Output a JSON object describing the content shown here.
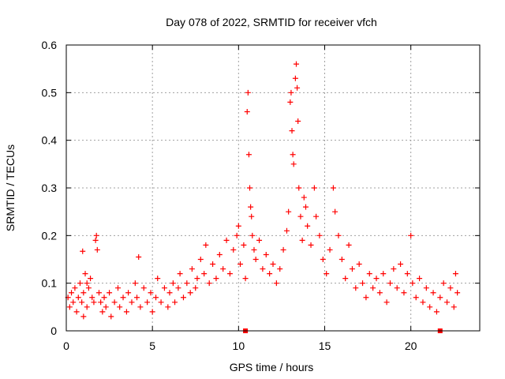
{
  "chart_data": {
    "type": "scatter",
    "title": "Day 078 of 2022, SRMTID for receiver vfch",
    "xlabel": "GPS time / hours",
    "ylabel": "SRMTID / TECUs",
    "xlim": [
      0,
      24
    ],
    "ylim": [
      0,
      0.6
    ],
    "xticks": [
      0,
      5,
      10,
      15,
      20
    ],
    "xtick_labels": [
      "0",
      "5",
      "10",
      "15",
      "20"
    ],
    "yticks": [
      0,
      0.1,
      0.2,
      0.3,
      0.4,
      0.5,
      0.6
    ],
    "ytick_labels": [
      "0",
      "0.1",
      "0.2",
      "0.3",
      "0.4",
      "0.5",
      "0.6"
    ],
    "grid": true,
    "marker": "+",
    "color": "#ff0000",
    "series": [
      {
        "name": "SRMTID",
        "points": [
          [
            0.1,
            0.07
          ],
          [
            0.2,
            0.05
          ],
          [
            0.3,
            0.08
          ],
          [
            0.4,
            0.06
          ],
          [
            0.5,
            0.09
          ],
          [
            0.6,
            0.04
          ],
          [
            0.7,
            0.07
          ],
          [
            0.8,
            0.1
          ],
          [
            0.9,
            0.06
          ],
          [
            1.0,
            0.08
          ],
          [
            1.1,
            0.12
          ],
          [
            1.2,
            0.05
          ],
          [
            1.3,
            0.09
          ],
          [
            1.4,
            0.11
          ],
          [
            1.5,
            0.07
          ],
          [
            1.6,
            0.06
          ],
          [
            1.7,
            0.19
          ],
          [
            1.75,
            0.2
          ],
          [
            1.8,
            0.17
          ],
          [
            1.9,
            0.08
          ],
          [
            0.95,
            0.167
          ],
          [
            1.0,
            0.03
          ],
          [
            1.2,
            0.1
          ],
          [
            2.0,
            0.06
          ],
          [
            2.1,
            0.04
          ],
          [
            2.2,
            0.07
          ],
          [
            2.3,
            0.05
          ],
          [
            2.5,
            0.08
          ],
          [
            2.6,
            0.03
          ],
          [
            2.8,
            0.06
          ],
          [
            3.0,
            0.09
          ],
          [
            3.1,
            0.05
          ],
          [
            3.3,
            0.07
          ],
          [
            3.5,
            0.04
          ],
          [
            3.6,
            0.08
          ],
          [
            3.8,
            0.06
          ],
          [
            4.0,
            0.1
          ],
          [
            4.1,
            0.07
          ],
          [
            4.2,
            0.155
          ],
          [
            4.3,
            0.05
          ],
          [
            4.5,
            0.09
          ],
          [
            4.7,
            0.06
          ],
          [
            4.9,
            0.08
          ],
          [
            5.0,
            0.04
          ],
          [
            5.2,
            0.07
          ],
          [
            5.3,
            0.11
          ],
          [
            5.5,
            0.06
          ],
          [
            5.7,
            0.09
          ],
          [
            5.9,
            0.05
          ],
          [
            6.0,
            0.08
          ],
          [
            6.2,
            0.1
          ],
          [
            6.3,
            0.06
          ],
          [
            6.5,
            0.09
          ],
          [
            6.6,
            0.12
          ],
          [
            6.8,
            0.07
          ],
          [
            7.0,
            0.1
          ],
          [
            7.2,
            0.08
          ],
          [
            7.3,
            0.13
          ],
          [
            7.5,
            0.09
          ],
          [
            7.6,
            0.11
          ],
          [
            7.8,
            0.15
          ],
          [
            8.0,
            0.12
          ],
          [
            8.1,
            0.18
          ],
          [
            8.3,
            0.1
          ],
          [
            8.5,
            0.14
          ],
          [
            8.7,
            0.11
          ],
          [
            8.9,
            0.16
          ],
          [
            9.1,
            0.13
          ],
          [
            9.3,
            0.19
          ],
          [
            9.5,
            0.12
          ],
          [
            9.7,
            0.17
          ],
          [
            9.9,
            0.2
          ],
          [
            10.0,
            0.22
          ],
          [
            10.1,
            0.14
          ],
          [
            10.3,
            0.18
          ],
          [
            10.4,
            0.11
          ],
          [
            10.5,
            0.46
          ],
          [
            10.55,
            0.5
          ],
          [
            10.6,
            0.37
          ],
          [
            10.65,
            0.3
          ],
          [
            10.7,
            0.26
          ],
          [
            10.75,
            0.24
          ],
          [
            10.8,
            0.2
          ],
          [
            10.9,
            0.17
          ],
          [
            11.0,
            0.15
          ],
          [
            11.2,
            0.19
          ],
          [
            11.4,
            0.13
          ],
          [
            11.6,
            0.16
          ],
          [
            11.8,
            0.12
          ],
          [
            12.0,
            0.14
          ],
          [
            12.2,
            0.1
          ],
          [
            12.4,
            0.13
          ],
          [
            12.6,
            0.17
          ],
          [
            12.8,
            0.21
          ],
          [
            12.9,
            0.25
          ],
          [
            13.0,
            0.48
          ],
          [
            13.05,
            0.5
          ],
          [
            13.1,
            0.42
          ],
          [
            13.15,
            0.37
          ],
          [
            13.2,
            0.35
          ],
          [
            13.3,
            0.53
          ],
          [
            13.35,
            0.56
          ],
          [
            13.4,
            0.51
          ],
          [
            13.45,
            0.44
          ],
          [
            13.5,
            0.3
          ],
          [
            13.6,
            0.24
          ],
          [
            13.7,
            0.19
          ],
          [
            13.8,
            0.28
          ],
          [
            13.9,
            0.26
          ],
          [
            14.0,
            0.22
          ],
          [
            14.2,
            0.18
          ],
          [
            14.4,
            0.3
          ],
          [
            14.5,
            0.24
          ],
          [
            14.7,
            0.2
          ],
          [
            14.9,
            0.15
          ],
          [
            15.1,
            0.12
          ],
          [
            15.3,
            0.17
          ],
          [
            15.5,
            0.3
          ],
          [
            15.6,
            0.25
          ],
          [
            15.8,
            0.2
          ],
          [
            16.0,
            0.15
          ],
          [
            16.2,
            0.11
          ],
          [
            16.4,
            0.18
          ],
          [
            16.6,
            0.13
          ],
          [
            16.8,
            0.09
          ],
          [
            17.0,
            0.14
          ],
          [
            17.2,
            0.1
          ],
          [
            17.4,
            0.07
          ],
          [
            17.6,
            0.12
          ],
          [
            17.8,
            0.09
          ],
          [
            18.0,
            0.11
          ],
          [
            18.2,
            0.08
          ],
          [
            18.4,
            0.12
          ],
          [
            18.6,
            0.06
          ],
          [
            18.8,
            0.1
          ],
          [
            19.0,
            0.13
          ],
          [
            19.2,
            0.09
          ],
          [
            19.4,
            0.14
          ],
          [
            19.6,
            0.08
          ],
          [
            19.8,
            0.12
          ],
          [
            20.0,
            0.2
          ],
          [
            20.1,
            0.1
          ],
          [
            20.3,
            0.07
          ],
          [
            20.5,
            0.11
          ],
          [
            20.7,
            0.06
          ],
          [
            20.9,
            0.09
          ],
          [
            21.1,
            0.05
          ],
          [
            21.3,
            0.08
          ],
          [
            21.5,
            0.04
          ],
          [
            21.7,
            0.07
          ],
          [
            21.9,
            0.1
          ],
          [
            22.1,
            0.06
          ],
          [
            22.3,
            0.09
          ],
          [
            22.5,
            0.05
          ],
          [
            22.6,
            0.12
          ],
          [
            22.7,
            0.08
          ]
        ]
      }
    ],
    "gap_markers_x": [
      10.4,
      21.7
    ]
  }
}
